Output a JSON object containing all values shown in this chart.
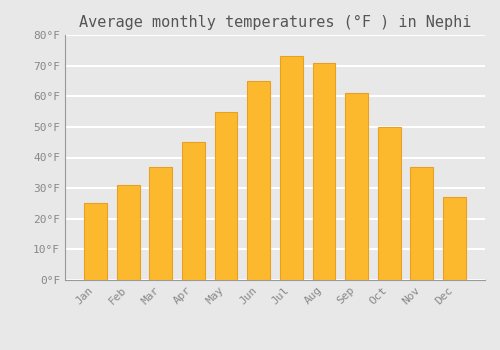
{
  "months": [
    "Jan",
    "Feb",
    "Mar",
    "Apr",
    "May",
    "Jun",
    "Jul",
    "Aug",
    "Sep",
    "Oct",
    "Nov",
    "Dec"
  ],
  "values": [
    25,
    31,
    37,
    45,
    55,
    65,
    73,
    71,
    61,
    50,
    37,
    27
  ],
  "bar_color": "#FDB92E",
  "bar_edge_color": "#E8A020",
  "title": "Average monthly temperatures (°F ) in Nephi",
  "ylim": [
    0,
    80
  ],
  "yticks": [
    0,
    10,
    20,
    30,
    40,
    50,
    60,
    70,
    80
  ],
  "ytick_labels": [
    "0°F",
    "10°F",
    "20°F",
    "30°F",
    "40°F",
    "50°F",
    "60°F",
    "70°F",
    "80°F"
  ],
  "background_color": "#e8e8e8",
  "grid_color": "#ffffff",
  "title_fontsize": 11,
  "tick_fontsize": 8,
  "font_family": "monospace",
  "title_color": "#555555",
  "tick_color": "#888888"
}
